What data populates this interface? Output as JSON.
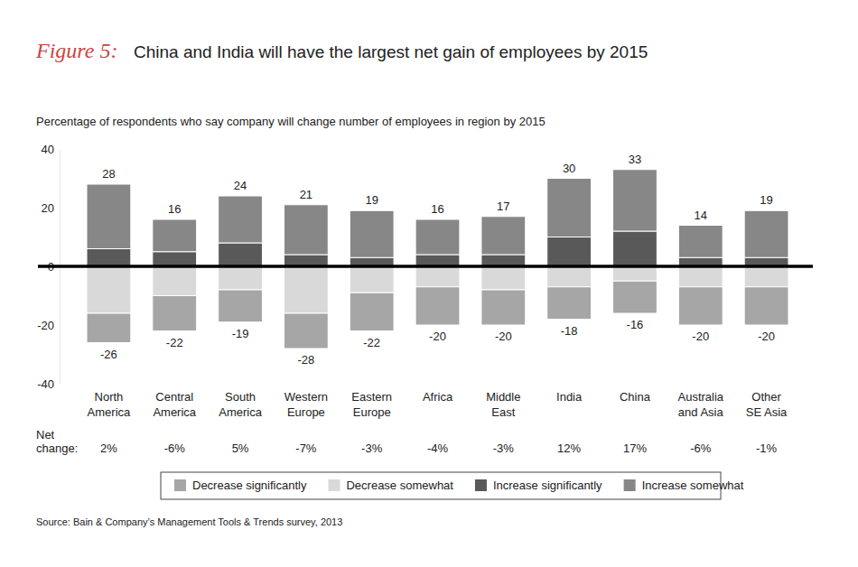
{
  "chart_data": {
    "type": "bar",
    "stacked": true,
    "figure_label": "Figure 5:",
    "title": "China and India will have the largest net gain of employees by 2015",
    "subtitle": "Percentage of respondents who say company will change number of employees in region by 2015",
    "categories": [
      "North America",
      "Central America",
      "South America",
      "Western Europe",
      "Eastern Europe",
      "Africa",
      "Middle East",
      "India",
      "China",
      "Australia and Asia",
      "Other SE Asia"
    ],
    "series": [
      {
        "name": "Decrease significantly",
        "color": "#a6a6a6",
        "values": [
          -10,
          -12,
          -11,
          -12,
          -13,
          -13,
          -12,
          -11,
          -11,
          -13,
          -13
        ]
      },
      {
        "name": "Decrease somewhat",
        "color": "#d9d9d9",
        "values": [
          -16,
          -10,
          -8,
          -16,
          -9,
          -7,
          -8,
          -7,
          -5,
          -7,
          -7
        ]
      },
      {
        "name": "Increase significantly",
        "color": "#595959",
        "values": [
          6,
          5,
          8,
          4,
          3,
          4,
          4,
          10,
          12,
          3,
          3
        ]
      },
      {
        "name": "Increase somewhat",
        "color": "#878787",
        "values": [
          22,
          11,
          16,
          17,
          16,
          12,
          13,
          20,
          21,
          11,
          16
        ]
      }
    ],
    "positive_totals": [
      28,
      16,
      24,
      21,
      19,
      16,
      17,
      30,
      33,
      14,
      19
    ],
    "negative_totals": [
      -26,
      -22,
      -19,
      -28,
      -22,
      -20,
      -20,
      -18,
      -16,
      -20,
      -20
    ],
    "net_change_label": "Net change:",
    "net_change": [
      "2%",
      "-6%",
      "5%",
      "-7%",
      "-3%",
      "-4%",
      "-3%",
      "12%",
      "17%",
      "-6%",
      "-1%"
    ],
    "ylim": [
      -40,
      40
    ],
    "yticks": [
      -40,
      -20,
      0,
      20,
      40
    ],
    "legend": "bottom",
    "source": "Source: Bain & Company’s Management Tools & Trends survey, 2013"
  }
}
